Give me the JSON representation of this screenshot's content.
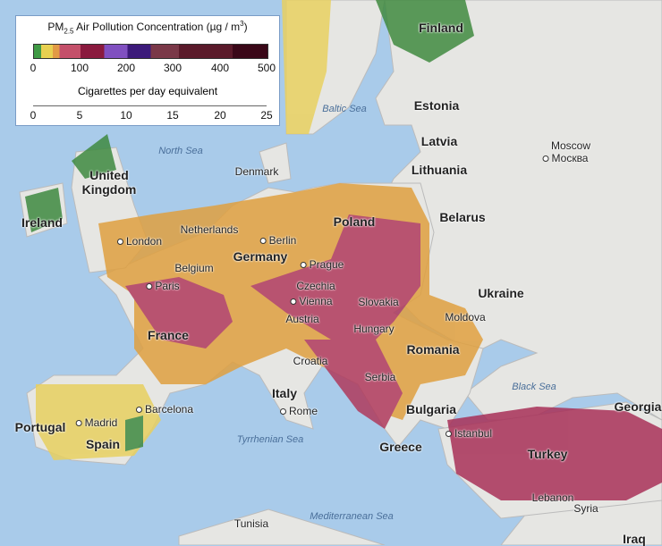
{
  "legend": {
    "title": "PM2.5 Air Pollution Concentration (µg / m³)",
    "title_prefix": "PM",
    "title_subscript": "2.5",
    "title_suffix": " Air Pollution Concentration (µg / m",
    "title_sup": "3",
    "title_close": ")",
    "pm_ticks": [
      "0",
      "100",
      "200",
      "300",
      "400",
      "500"
    ],
    "subtitle": "Cigarettes per day equivalent",
    "cig_ticks": [
      "0",
      "5",
      "10",
      "15",
      "20",
      "25"
    ],
    "colors": [
      "#3f9a45",
      "#e8d050",
      "#e29a45",
      "#c4506a",
      "#8a1a3e",
      "#8050c0",
      "#3c1a7a",
      "#7a3848",
      "#3a0818"
    ]
  },
  "countries": [
    "Finland",
    "Estonia",
    "Latvia",
    "Lithuania",
    "Denmark",
    "United Kingdom",
    "Ireland",
    "Belarus",
    "Poland",
    "Netherlands",
    "Germany",
    "Belgium",
    "Ukraine",
    "Czechia",
    "Slovakia",
    "Austria",
    "Moldova",
    "Hungary",
    "France",
    "Romania",
    "Croatia",
    "Serbia",
    "Italy",
    "Bulgaria",
    "Georgia",
    "Portugal",
    "Spain",
    "Greece",
    "Turkey",
    "Syria",
    "Lebanon",
    "Tunisia",
    "Iraq"
  ],
  "cities": [
    "Moscow",
    "London",
    "Berlin",
    "Prague",
    "Paris",
    "Vienna",
    "Rome",
    "Barcelona",
    "Madrid",
    "Istanbul"
  ],
  "moscow_local": "Москва",
  "seas": [
    "Baltic Sea",
    "North Sea",
    "Black Sea",
    "Tyrrhenian Sea",
    "Mediterranean Sea"
  ]
}
